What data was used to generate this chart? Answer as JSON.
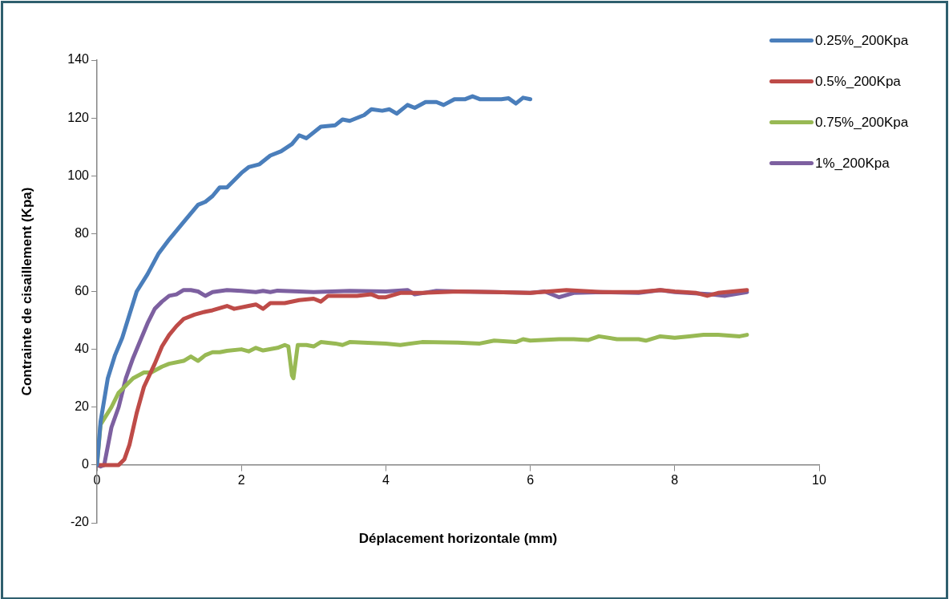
{
  "chart_data": {
    "type": "line",
    "xlabel": "Déplacement horizontale (mm)",
    "ylabel": "Contrainte de cisaillement (Kpa)",
    "xlim": [
      0,
      10
    ],
    "xticks": [
      0,
      2,
      4,
      6,
      8,
      10
    ],
    "ylim": [
      -20,
      140
    ],
    "yticks": [
      -20,
      0,
      20,
      40,
      60,
      80,
      100,
      120,
      140
    ],
    "grid": false,
    "legend": "top right",
    "marker": "none",
    "line_style": "solid",
    "series": [
      {
        "name": "0.25%_200Kpa",
        "color": "#4a7ebb",
        "x": [
          0,
          0.05,
          0.15,
          0.25,
          0.35,
          0.45,
          0.55,
          0.7,
          0.85,
          1.0,
          1.2,
          1.4,
          1.5,
          1.6,
          1.7,
          1.8,
          2.0,
          2.1,
          2.25,
          2.4,
          2.55,
          2.7,
          2.8,
          2.9,
          3.1,
          3.3,
          3.4,
          3.5,
          3.7,
          3.8,
          3.95,
          4.05,
          4.15,
          4.3,
          4.4,
          4.55,
          4.7,
          4.8,
          4.95,
          5.1,
          5.2,
          5.3,
          5.6,
          5.7,
          5.8,
          5.9,
          6.0
        ],
        "values": [
          0,
          15,
          30,
          38,
          44,
          52,
          60,
          66,
          73,
          78,
          84,
          90,
          91,
          93,
          96,
          96,
          101,
          103,
          104,
          107,
          108.5,
          111,
          114,
          113,
          117,
          117.5,
          119.5,
          119,
          121,
          123,
          122.5,
          123,
          121.5,
          124.5,
          123.5,
          125.5,
          125.5,
          124.5,
          126.5,
          126.5,
          127.5,
          126.5,
          126.5,
          126.8,
          125,
          127,
          126.5
        ]
      },
      {
        "name": "0.5%_200Kpa",
        "color": "#be4b48",
        "x": [
          0,
          0.3,
          0.38,
          0.45,
          0.55,
          0.65,
          0.8,
          0.9,
          1.0,
          1.1,
          1.2,
          1.35,
          1.5,
          1.6,
          1.8,
          1.9,
          2.1,
          2.2,
          2.3,
          2.4,
          2.6,
          2.8,
          3.0,
          3.1,
          3.2,
          3.4,
          3.6,
          3.8,
          3.9,
          4.0,
          4.2,
          4.5,
          5.0,
          5.5,
          6.0,
          6.5,
          7.0,
          7.5,
          7.8,
          8.0,
          8.3,
          8.45,
          8.6,
          9.0
        ],
        "values": [
          0,
          0,
          2,
          7,
          18,
          27,
          35,
          41,
          45,
          48,
          50.5,
          52,
          53,
          53.5,
          55,
          54,
          55,
          55.5,
          54,
          56,
          56,
          57,
          57.5,
          56.5,
          58.5,
          58.5,
          58.5,
          59,
          58,
          58,
          59.5,
          59.5,
          60,
          59.8,
          59.5,
          60.5,
          59.8,
          59.8,
          60.5,
          60,
          59.5,
          58.5,
          59.5,
          60.5
        ]
      },
      {
        "name": "0.75%_200Kpa",
        "color": "#98b954",
        "x": [
          0,
          0.05,
          0.2,
          0.3,
          0.5,
          0.65,
          0.75,
          0.9,
          1.0,
          1.2,
          1.3,
          1.4,
          1.5,
          1.6,
          1.7,
          1.8,
          2.0,
          2.1,
          2.2,
          2.3,
          2.5,
          2.6,
          2.65,
          2.7,
          2.72,
          2.78,
          2.9,
          3.0,
          3.1,
          3.3,
          3.4,
          3.5,
          4.0,
          4.2,
          4.5,
          5.0,
          5.3,
          5.5,
          5.8,
          5.9,
          6.0,
          6.4,
          6.6,
          6.8,
          6.95,
          7.2,
          7.5,
          7.6,
          7.8,
          8.0,
          8.2,
          8.4,
          8.6,
          8.9,
          9.0
        ],
        "values": [
          0,
          14,
          20,
          25,
          30,
          32,
          32,
          34,
          35,
          36,
          37.5,
          36,
          38,
          39,
          39,
          39.5,
          40,
          39.3,
          40.5,
          39.6,
          40.5,
          41.5,
          41,
          31,
          30,
          41.5,
          41.5,
          41,
          42.5,
          42,
          41.5,
          42.5,
          42,
          41.5,
          42.5,
          42.3,
          42,
          43,
          42.5,
          43.5,
          43,
          43.5,
          43.5,
          43.2,
          44.5,
          43.5,
          43.5,
          43,
          44.5,
          44,
          44.5,
          45,
          45,
          44.5,
          45
        ]
      },
      {
        "name": "1%_200Kpa",
        "color": "#7d60a0",
        "x": [
          0,
          0.05,
          0.1,
          0.2,
          0.3,
          0.4,
          0.5,
          0.6,
          0.7,
          0.8,
          0.9,
          1.0,
          1.1,
          1.2,
          1.3,
          1.4,
          1.5,
          1.6,
          1.8,
          2.0,
          2.2,
          2.3,
          2.4,
          2.5,
          2.8,
          3.0,
          3.5,
          4.0,
          4.3,
          4.4,
          4.7,
          5.0,
          5.5,
          6.0,
          6.2,
          6.4,
          6.6,
          7.0,
          7.5,
          7.8,
          8.0,
          8.5,
          8.7,
          9.0
        ],
        "values": [
          0,
          -0.5,
          0,
          13,
          20,
          30,
          37,
          43,
          49,
          54,
          56.5,
          58.5,
          59,
          60.5,
          60.5,
          60,
          58.5,
          59.8,
          60.5,
          60.2,
          59.8,
          60.2,
          59.8,
          60.3,
          60,
          59.8,
          60.2,
          60,
          60.5,
          59,
          60.2,
          60,
          59.8,
          59.5,
          60,
          58,
          59.5,
          59.8,
          59.5,
          60.5,
          59.8,
          59,
          58.5,
          59.8
        ]
      }
    ]
  }
}
